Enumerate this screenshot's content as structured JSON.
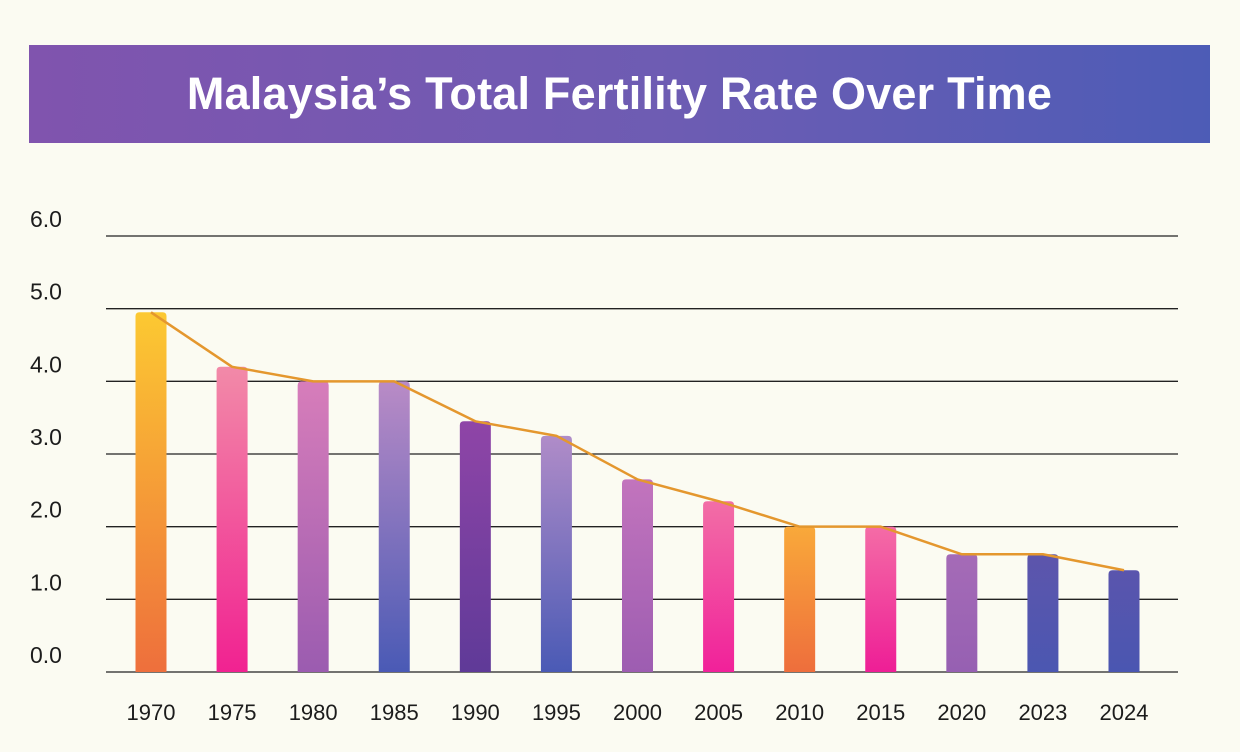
{
  "chart_data": {
    "type": "bar",
    "title": "Malaysia’s Total Fertility Rate Over Time",
    "xlabel": "",
    "ylabel": "",
    "ylim": [
      0,
      6
    ],
    "y_ticks": [
      "0.0",
      "1.0",
      "2.0",
      "3.0",
      "4.0",
      "5.0",
      "6.0"
    ],
    "grid": true,
    "overlay_line": true,
    "categories": [
      "1970",
      "1975",
      "1980",
      "1985",
      "1990",
      "1995",
      "2000",
      "2005",
      "2010",
      "2015",
      "2020",
      "2023",
      "2024"
    ],
    "values": [
      4.95,
      4.2,
      4.0,
      4.0,
      3.45,
      3.25,
      2.65,
      2.35,
      2.0,
      2.0,
      1.62,
      1.62,
      1.4
    ],
    "bar_gradients": [
      [
        "#fcc932",
        "#ee6f3c"
      ],
      [
        "#f28aa8",
        "#f12291"
      ],
      [
        "#d77dba",
        "#9b5cb0"
      ],
      [
        "#b98bc6",
        "#4a5ab5"
      ],
      [
        "#8f45a7",
        "#5f3a98"
      ],
      [
        "#b08cc8",
        "#4a5ab5"
      ],
      [
        "#c274bd",
        "#9d5db1"
      ],
      [
        "#f26ea6",
        "#f1219a"
      ],
      [
        "#f9a93a",
        "#ee6e3c"
      ],
      [
        "#f46ca6",
        "#ee1e96"
      ],
      [
        "#a56bb7",
        "#9660b2"
      ],
      [
        "#5d55ac",
        "#4b57b1"
      ],
      [
        "#5a55ad",
        "#4a56b1"
      ]
    ],
    "line_color": "#e4972e"
  }
}
